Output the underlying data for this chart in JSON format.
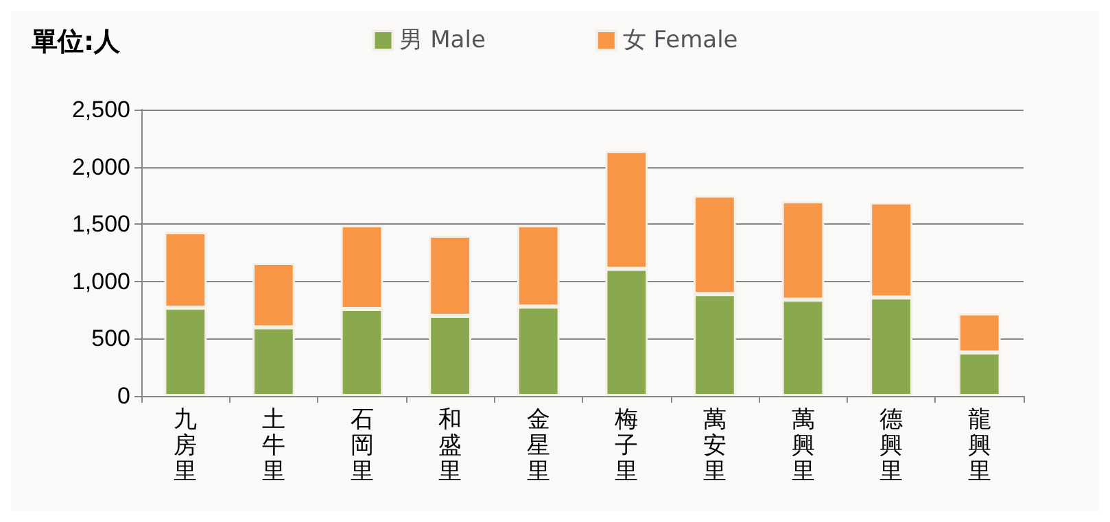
{
  "chart_data": {
    "type": "bar",
    "title": "單位:人",
    "categories": [
      "九房里",
      "土牛里",
      "石岡里",
      "和盛里",
      "金星里",
      "梅子里",
      "萬安里",
      "萬興里",
      "德興里",
      "龍興里"
    ],
    "stacked": true,
    "series": [
      {
        "name": "男 Male",
        "color": "#8aa84e",
        "values": [
          770,
          600,
          760,
          700,
          780,
          1110,
          890,
          840,
          860,
          380
        ]
      },
      {
        "name": "女 Female",
        "color": "#f79646",
        "values": [
          660,
          560,
          730,
          700,
          710,
          1030,
          860,
          860,
          830,
          340
        ]
      }
    ],
    "ylim": [
      0,
      2500
    ],
    "yticks": [
      0,
      500,
      {
        "value": 1000,
        "label": "1,000"
      },
      {
        "value": 1500,
        "label": "1,500"
      },
      {
        "value": 2000,
        "label": "2,000"
      },
      {
        "value": 2500,
        "label": "2,500"
      }
    ],
    "grid": "y",
    "legend": "top"
  }
}
